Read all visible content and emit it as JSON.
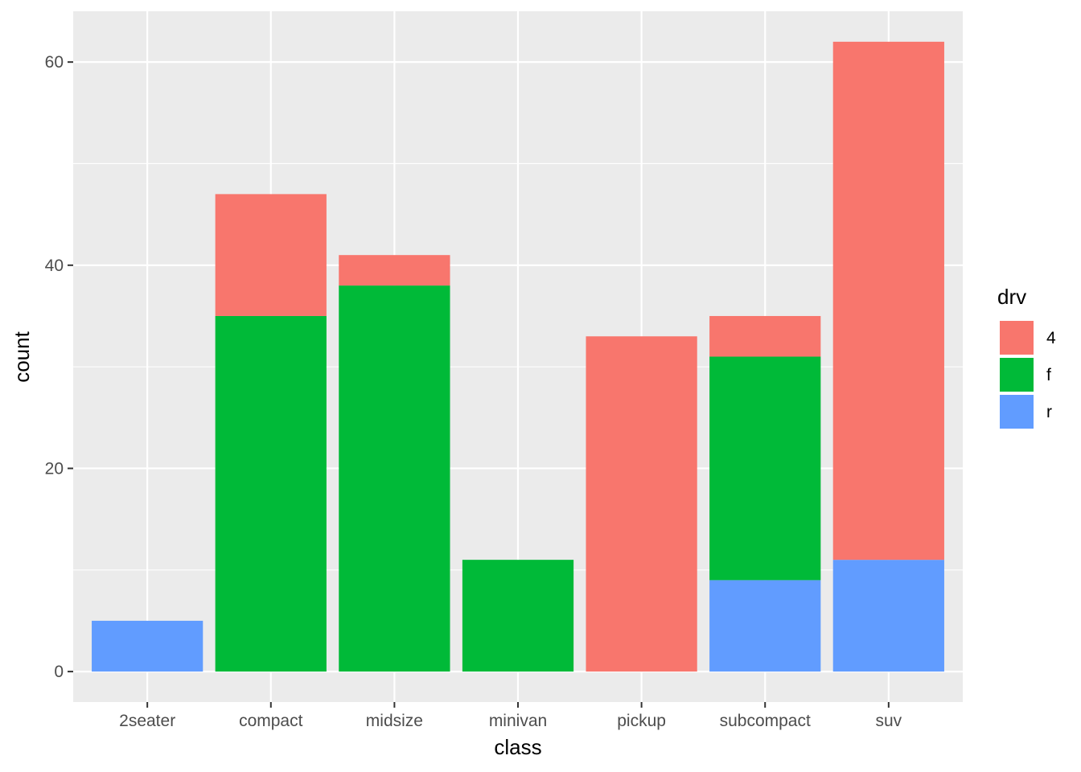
{
  "chart_data": {
    "type": "bar",
    "stacked": true,
    "categories": [
      "2seater",
      "compact",
      "midsize",
      "minivan",
      "pickup",
      "subcompact",
      "suv"
    ],
    "series": [
      {
        "name": "4",
        "color": "#F8766D",
        "values": [
          0,
          12,
          3,
          0,
          33,
          4,
          51
        ]
      },
      {
        "name": "f",
        "color": "#00BA38",
        "values": [
          0,
          35,
          38,
          11,
          0,
          22,
          0
        ]
      },
      {
        "name": "r",
        "color": "#619CFF",
        "values": [
          5,
          0,
          0,
          0,
          0,
          9,
          11
        ]
      }
    ],
    "stack_order_bottom_to_top": [
      "r",
      "f",
      "4"
    ],
    "xlabel": "class",
    "ylabel": "count",
    "ylim": [
      -3,
      65
    ],
    "yticks": [
      0,
      20,
      40,
      60
    ],
    "yticks_minor": [
      10,
      30,
      50
    ],
    "grid": true,
    "legend": {
      "title": "drv",
      "placement": "right",
      "entries": [
        "4",
        "f",
        "r"
      ]
    },
    "panel_background": "#EBEBEB",
    "gridline_color": "#FFFFFF"
  }
}
